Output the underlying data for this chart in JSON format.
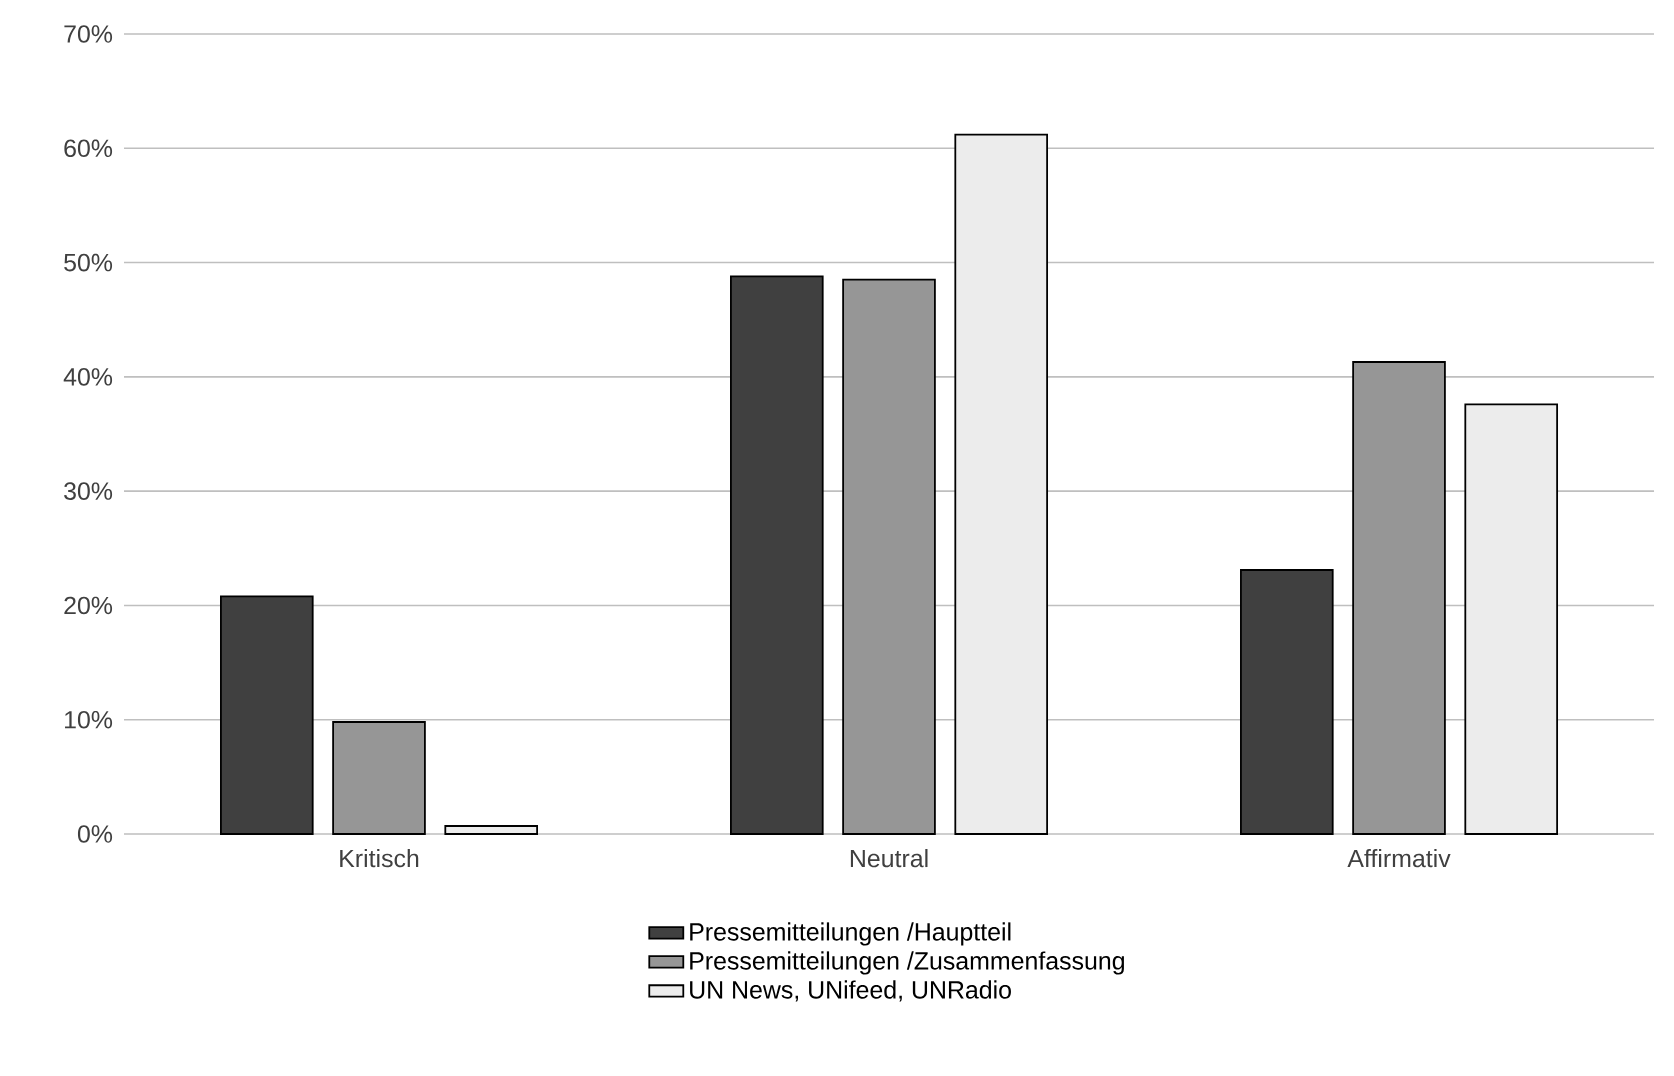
{
  "chart_data": {
    "type": "bar",
    "categories": [
      "Kritisch",
      "Neutral",
      "Affirmativ"
    ],
    "series": [
      {
        "name": "Pressemitteilungen /Hauptteil",
        "color": "#404040",
        "values": [
          20.8,
          48.8,
          23.1
        ]
      },
      {
        "name": "Pressemitteilungen /Zusammenfassung",
        "color": "#969696",
        "values": [
          9.8,
          48.5,
          41.3
        ]
      },
      {
        "name": "UN News, UNifeed, UNRadio",
        "color": "#ececec",
        "values": [
          0.7,
          61.2,
          37.6
        ]
      }
    ],
    "ylim": [
      0,
      70
    ],
    "yticks": [
      {
        "value": 0,
        "label": "0%"
      },
      {
        "value": 10,
        "label": "10%"
      },
      {
        "value": 20,
        "label": "20%"
      },
      {
        "value": 30,
        "label": "30%"
      },
      {
        "value": 40,
        "label": "40%"
      },
      {
        "value": 50,
        "label": "50%"
      },
      {
        "value": 60,
        "label": "60%"
      },
      {
        "value": 70,
        "label": "70%"
      }
    ],
    "grid": "y",
    "legend": "bottom"
  }
}
